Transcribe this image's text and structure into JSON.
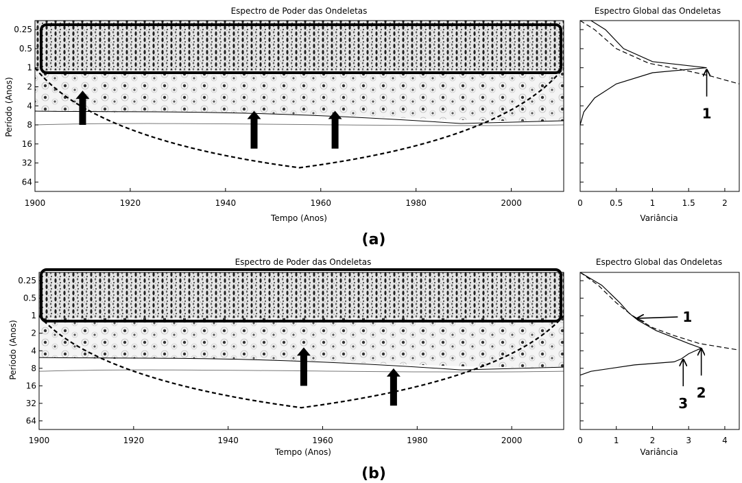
{
  "chart_data": [
    {
      "panel": "(a)",
      "wavelet": {
        "type": "heatmap",
        "title": "Espectro de Poder das Ondeletas",
        "xlabel": "Tempo (Anos)",
        "ylabel": "Período (Anos)",
        "xlim": [
          1900,
          2011
        ],
        "xticks": [
          1900,
          1920,
          1940,
          1960,
          1980,
          2000
        ],
        "yticks": [
          "0.25",
          "0.5",
          "1",
          "2",
          "4",
          "8",
          "16",
          "32",
          "64"
        ],
        "ylim": [
          0.18,
          90
        ],
        "yscale": "log2",
        "band_top": 8,
        "coi_bottom": [
          [
            1900,
            1.0
          ],
          [
            1955.5,
            38
          ],
          [
            2011,
            1.0
          ]
        ],
        "highlight_box": [
          0.18,
          1.1
        ],
        "arrows": [
          [
            1910,
            8,
            2.3
          ],
          [
            1946,
            19,
            4.8
          ],
          [
            1963,
            19,
            4.8
          ]
        ]
      },
      "global": {
        "type": "line",
        "title": "Espectro Global das Ondeletas",
        "xlabel": "Variância",
        "xlim": [
          0,
          2.2
        ],
        "xticks": [
          "0",
          "0.5",
          "1",
          "1.5",
          "2"
        ],
        "series": [
          {
            "style": "solid",
            "points": [
              [
                0.15,
                0.18
              ],
              [
                0.35,
                0.25
              ],
              [
                0.6,
                0.5
              ],
              [
                1.0,
                0.8
              ],
              [
                1.75,
                1.0
              ],
              [
                1.0,
                1.2
              ],
              [
                0.5,
                1.8
              ],
              [
                0.2,
                3.0
              ],
              [
                0.05,
                5.0
              ],
              [
                0,
                8.0
              ]
            ]
          },
          {
            "style": "dashed",
            "points": [
              [
                0,
                0.18
              ],
              [
                0.2,
                0.25
              ],
              [
                0.5,
                0.5
              ],
              [
                0.95,
                0.85
              ],
              [
                1.45,
                1.1
              ],
              [
                1.8,
                1.35
              ],
              [
                2.2,
                1.8
              ]
            ]
          }
        ],
        "annotations": [
          {
            "text": "1",
            "x": 1.75,
            "y": 1.05
          }
        ]
      }
    },
    {
      "panel": "(b)",
      "wavelet": {
        "type": "heatmap",
        "title": "Espectro de Poder das Ondeletas",
        "xlabel": "Tempo (Anos)",
        "ylabel": "Período (Anos)",
        "xlim": [
          1900,
          2011
        ],
        "xticks": [
          1900,
          1920,
          1940,
          1960,
          1980,
          2000
        ],
        "yticks": [
          "0.25",
          "0.5",
          "1",
          "2",
          "4",
          "8",
          "16",
          "32",
          "64"
        ],
        "ylim": [
          0.18,
          90
        ],
        "yscale": "log2",
        "band_top": 9,
        "coi_bottom": [
          [
            1900,
            1.0
          ],
          [
            1955.5,
            38
          ],
          [
            2011,
            1.0
          ]
        ],
        "highlight_box": [
          0.18,
          1.1
        ],
        "arrows": [
          [
            1956,
            16,
            3.5
          ],
          [
            1975,
            35,
            8
          ]
        ]
      },
      "global": {
        "type": "line",
        "title": "Espectro Global das Ondeletas",
        "xlabel": "Variância",
        "xlim": [
          0,
          4.4
        ],
        "xticks": [
          "0",
          "1",
          "2",
          "3",
          "4"
        ],
        "series": [
          {
            "style": "solid",
            "points": [
              [
                0,
                0.18
              ],
              [
                0.6,
                0.3
              ],
              [
                1.1,
                0.6
              ],
              [
                1.35,
                0.9
              ],
              [
                1.6,
                1.2
              ],
              [
                2.1,
                1.8
              ],
              [
                3.0,
                3.0
              ],
              [
                3.35,
                3.6
              ],
              [
                3.0,
                4.5
              ],
              [
                2.8,
                5.5
              ],
              [
                2.6,
                6.2
              ],
              [
                1.5,
                7.0
              ],
              [
                0.3,
                9.0
              ],
              [
                0,
                10.5
              ]
            ]
          },
          {
            "style": "dashed",
            "points": [
              [
                0,
                0.18
              ],
              [
                0.5,
                0.3
              ],
              [
                1.0,
                0.6
              ],
              [
                1.45,
                1.0
              ],
              [
                2.0,
                1.6
              ],
              [
                2.6,
                2.2
              ],
              [
                3.3,
                3.0
              ],
              [
                4.4,
                3.9
              ]
            ]
          }
        ],
        "annotations": [
          {
            "text": "1",
            "x": 1.6,
            "y": 1.05
          },
          {
            "text": "2",
            "x": 3.35,
            "y": 3.6
          },
          {
            "text": "3",
            "x": 2.85,
            "y": 5.5
          }
        ]
      }
    }
  ]
}
